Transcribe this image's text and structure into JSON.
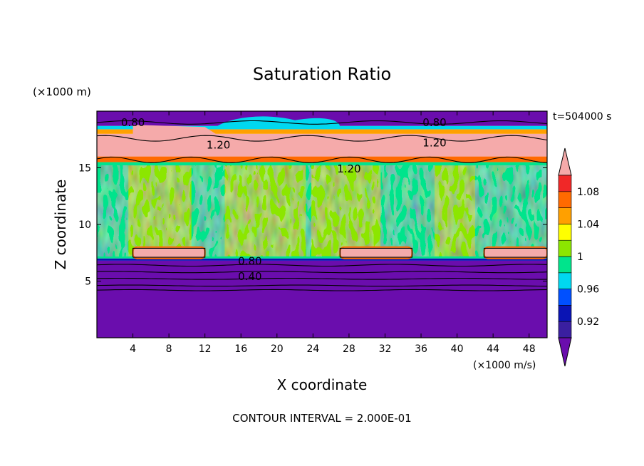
{
  "chart_data": {
    "type": "heatmap",
    "title": "Saturation Ratio",
    "xlabel": "X coordinate",
    "ylabel": "Z coordinate",
    "x_unit": "(×1000 m/s)",
    "y_unit": "(×1000 m)",
    "time_label": "t=504000 s",
    "footer": "CONTOUR INTERVAL = 2.000E-01",
    "xlim": [
      0,
      50
    ],
    "ylim": [
      0,
      20
    ],
    "x_ticks": [
      4,
      8,
      12,
      16,
      20,
      24,
      28,
      32,
      36,
      40,
      44,
      48
    ],
    "y_ticks": [
      5,
      10,
      15
    ],
    "colorbar": {
      "labels": [
        "0.92",
        "0.96",
        "1",
        "1.04",
        "1.08"
      ],
      "levels": [
        0.9,
        0.92,
        0.94,
        0.96,
        0.98,
        1.0,
        1.02,
        1.04,
        1.06,
        1.08,
        1.1
      ],
      "colors": [
        "#6a0dad",
        "#3a1fa0",
        "#0a14b4",
        "#0050ff",
        "#00d8f0",
        "#00e48c",
        "#8ce600",
        "#ffff00",
        "#ffa000",
        "#ff6a00",
        "#f02828",
        "#f5aaaa"
      ]
    },
    "contour_labels": [
      {
        "text": "0.80",
        "x": 4.0,
        "z": 19.0
      },
      {
        "text": "0.80",
        "x": 37.5,
        "z": 19.0
      },
      {
        "text": "1.20",
        "x": 13.5,
        "z": 17.0
      },
      {
        "text": "1.20",
        "x": 37.5,
        "z": 17.2
      },
      {
        "text": "1.20",
        "x": 28.0,
        "z": 14.9
      },
      {
        "text": "0.80",
        "x": 17.0,
        "z": 6.75
      },
      {
        "text": "0.40",
        "x": 17.0,
        "z": 5.4
      }
    ]
  }
}
